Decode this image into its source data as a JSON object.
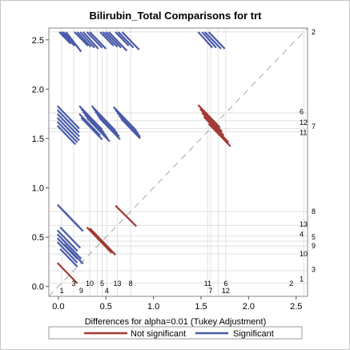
{
  "chart_data": {
    "type": "diffogram",
    "title": "Bilirubin_Total Comparisons for trt",
    "xlabel": "Differences for alpha=0.01 (Tukey Adjustment)",
    "xlim": [
      -0.1,
      2.62
    ],
    "ylim": [
      -0.1,
      2.62
    ],
    "x_ticks": [
      "0.0",
      "0.5",
      "1.0",
      "1.5",
      "2.0",
      "2.5"
    ],
    "y_ticks": [
      "0.0",
      "0.5",
      "1.0",
      "1.5",
      "2.0",
      "2.5"
    ],
    "x_tick_values": [
      0,
      0.5,
      1,
      1.5,
      2,
      2.5
    ],
    "y_tick_values": [
      0,
      0.5,
      1,
      1.5,
      2,
      2.5
    ],
    "groups": [
      {
        "id": "1",
        "mean": 0.035
      },
      {
        "id": "2",
        "mean": 2.58
      },
      {
        "id": "3",
        "mean": 0.16
      },
      {
        "id": "4",
        "mean": 0.51
      },
      {
        "id": "5",
        "mean": 0.46
      },
      {
        "id": "6",
        "mean": 1.76
      },
      {
        "id": "7",
        "mean": 1.6
      },
      {
        "id": "8",
        "mean": 0.76
      },
      {
        "id": "9",
        "mean": 0.41
      },
      {
        "id": "10",
        "mean": 0.33
      },
      {
        "id": "11",
        "mean": 1.57
      },
      {
        "id": "12",
        "mean": 1.68
      },
      {
        "id": "13",
        "mean": 0.62
      }
    ],
    "bottom_labels": [
      {
        "text": "1",
        "x": 0.035,
        "row": 2
      },
      {
        "text": "3",
        "x": 0.16,
        "row": 1
      },
      {
        "text": "9",
        "x": 0.24,
        "row": 2
      },
      {
        "text": "10",
        "x": 0.33,
        "row": 1
      },
      {
        "text": "5",
        "x": 0.46,
        "row": 1
      },
      {
        "text": "4",
        "x": 0.51,
        "row": 2
      },
      {
        "text": "13",
        "x": 0.62,
        "row": 1
      },
      {
        "text": "8",
        "x": 0.76,
        "row": 1
      },
      {
        "text": "11",
        "x": 1.57,
        "row": 1
      },
      {
        "text": "7",
        "x": 1.6,
        "row": 2
      },
      {
        "text": "6",
        "x": 1.76,
        "row": 1
      },
      {
        "text": "12",
        "x": 1.76,
        "row": 2
      },
      {
        "text": "2",
        "x": 2.45,
        "row": 1
      }
    ],
    "right_labels": [
      {
        "text": "2",
        "y": 2.58,
        "col": 2
      },
      {
        "text": "6",
        "y": 1.77,
        "col": 1
      },
      {
        "text": "12",
        "y": 1.66,
        "col": 1
      },
      {
        "text": "7",
        "y": 1.62,
        "col": 2
      },
      {
        "text": "11",
        "y": 1.56,
        "col": 1
      },
      {
        "text": "8",
        "y": 0.76,
        "col": 2
      },
      {
        "text": "13",
        "y": 0.63,
        "col": 1
      },
      {
        "text": "4",
        "y": 0.53,
        "col": 1
      },
      {
        "text": "5",
        "y": 0.5,
        "col": 2
      },
      {
        "text": "9",
        "y": 0.41,
        "col": 2
      },
      {
        "text": "10",
        "y": 0.33,
        "col": 1
      },
      {
        "text": "3",
        "y": 0.17,
        "col": 2
      },
      {
        "text": "1",
        "y": 0.075,
        "col": 1
      }
    ],
    "segments": {
      "significant": [
        [
          0.01,
          2.58,
          0.13,
          2.46
        ],
        [
          0.03,
          2.58,
          0.17,
          2.44
        ],
        [
          0.05,
          2.58,
          0.21,
          2.42
        ],
        [
          0.08,
          2.58,
          0.24,
          2.38
        ],
        [
          0.17,
          2.58,
          0.31,
          2.44
        ],
        [
          0.2,
          2.58,
          0.34,
          2.43
        ],
        [
          0.23,
          2.58,
          0.38,
          2.42
        ],
        [
          0.26,
          2.58,
          0.42,
          2.41
        ],
        [
          0.3,
          2.58,
          0.46,
          2.42
        ],
        [
          0.33,
          2.58,
          0.5,
          2.41
        ],
        [
          0.44,
          2.58,
          0.58,
          2.44
        ],
        [
          0.47,
          2.58,
          0.62,
          2.43
        ],
        [
          0.5,
          2.58,
          0.66,
          2.42
        ],
        [
          0.53,
          2.58,
          0.72,
          2.39
        ],
        [
          0.6,
          2.58,
          0.74,
          2.44
        ],
        [
          0.63,
          2.58,
          0.79,
          2.42
        ],
        [
          0.67,
          2.58,
          0.85,
          2.4
        ],
        [
          1.47,
          2.58,
          1.62,
          2.42
        ],
        [
          1.51,
          2.58,
          1.66,
          2.42
        ],
        [
          1.54,
          2.58,
          1.71,
          2.41
        ],
        [
          1.58,
          2.58,
          1.75,
          2.41
        ],
        [
          -0.01,
          1.83,
          0.22,
          1.6
        ],
        [
          -0.01,
          1.79,
          0.22,
          1.56
        ],
        [
          -0.01,
          1.75,
          0.22,
          1.52
        ],
        [
          -0.01,
          1.71,
          0.22,
          1.48
        ],
        [
          -0.01,
          1.67,
          0.2,
          1.46
        ],
        [
          -0.01,
          1.63,
          0.18,
          1.44
        ],
        [
          0.22,
          1.83,
          0.46,
          1.59
        ],
        [
          0.24,
          1.8,
          0.48,
          1.56
        ],
        [
          0.26,
          1.77,
          0.5,
          1.53
        ],
        [
          0.28,
          1.74,
          0.52,
          1.5
        ],
        [
          0.3,
          1.71,
          0.54,
          1.47
        ],
        [
          0.22,
          1.75,
          0.44,
          1.53
        ],
        [
          0.24,
          1.71,
          0.46,
          1.49
        ],
        [
          0.35,
          1.83,
          0.6,
          1.58
        ],
        [
          0.37,
          1.8,
          0.62,
          1.55
        ],
        [
          0.39,
          1.77,
          0.64,
          1.52
        ],
        [
          0.41,
          1.74,
          0.63,
          1.52
        ],
        [
          0.43,
          1.71,
          0.65,
          1.49
        ],
        [
          0.58,
          1.82,
          0.82,
          1.58
        ],
        [
          0.6,
          1.79,
          0.84,
          1.55
        ],
        [
          0.62,
          1.76,
          0.86,
          1.52
        ],
        [
          0.64,
          1.73,
          0.86,
          1.51
        ],
        [
          0.66,
          1.7,
          0.86,
          1.5
        ],
        [
          -0.01,
          0.83,
          0.2,
          0.62
        ],
        [
          0.02,
          0.8,
          0.22,
          0.6
        ],
        [
          0.05,
          0.77,
          0.24,
          0.58
        ],
        [
          0.08,
          0.74,
          0.26,
          0.56
        ],
        [
          -0.01,
          0.57,
          0.2,
          0.36
        ],
        [
          -0.01,
          0.53,
          0.2,
          0.32
        ],
        [
          -0.01,
          0.49,
          0.2,
          0.28
        ],
        [
          -0.01,
          0.45,
          0.2,
          0.24
        ],
        [
          0.02,
          0.6,
          0.23,
          0.39
        ],
        [
          0.04,
          0.48,
          0.24,
          0.28
        ],
        [
          0.06,
          0.43,
          0.26,
          0.23
        ],
        [
          0.02,
          0.38,
          0.2,
          0.2
        ]
      ],
      "not_significant": [
        [
          -0.01,
          0.24,
          0.2,
          0.03
        ],
        [
          0.3,
          0.6,
          0.56,
          0.34
        ],
        [
          0.33,
          0.59,
          0.58,
          0.34
        ],
        [
          0.35,
          0.57,
          0.6,
          0.32
        ],
        [
          0.37,
          0.55,
          0.6,
          0.32
        ],
        [
          0.6,
          0.82,
          0.82,
          0.61
        ],
        [
          1.47,
          1.84,
          1.7,
          1.61
        ],
        [
          1.49,
          1.8,
          1.72,
          1.57
        ],
        [
          1.51,
          1.76,
          1.74,
          1.53
        ],
        [
          1.53,
          1.72,
          1.76,
          1.49
        ],
        [
          1.56,
          1.69,
          1.79,
          1.46
        ],
        [
          1.58,
          1.65,
          1.81,
          1.42
        ]
      ]
    },
    "colors": {
      "significant": "#4a5ba8",
      "not_significant": "#a23a36",
      "diagonal": "#b4b4b4",
      "reference_lines": "#e0e0e0"
    },
    "legend": {
      "items": [
        {
          "label": "Not significant",
          "color": "#a23a36"
        },
        {
          "label": "Significant",
          "color": "#4a5ba8"
        }
      ],
      "placement": "bottom"
    }
  }
}
